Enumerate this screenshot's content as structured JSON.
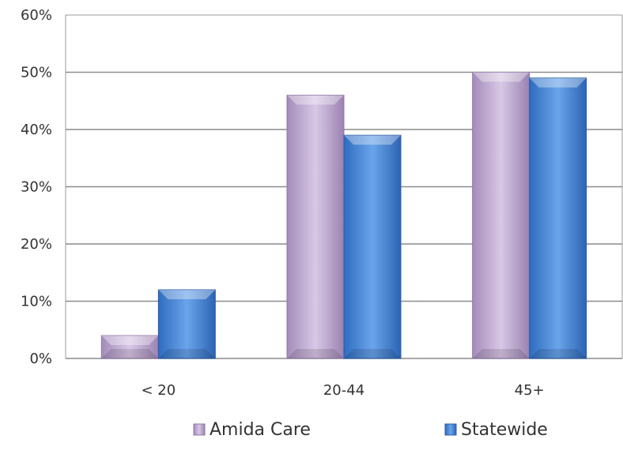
{
  "chart_data": {
    "type": "bar",
    "categories": [
      "< 20",
      "20-44",
      "45+"
    ],
    "series": [
      {
        "name": "Amida Care",
        "values": [
          4,
          46,
          50
        ],
        "color": "#b39cc6"
      },
      {
        "name": "Statewide",
        "values": [
          12,
          39,
          49
        ],
        "color": "#4a86d4"
      }
    ],
    "ylim": [
      0,
      60
    ],
    "yticks": [
      "0%",
      "10%",
      "20%",
      "30%",
      "40%",
      "50%",
      "60%"
    ],
    "grid": true,
    "legend_position": "bottom",
    "style": "3d-bevel"
  }
}
